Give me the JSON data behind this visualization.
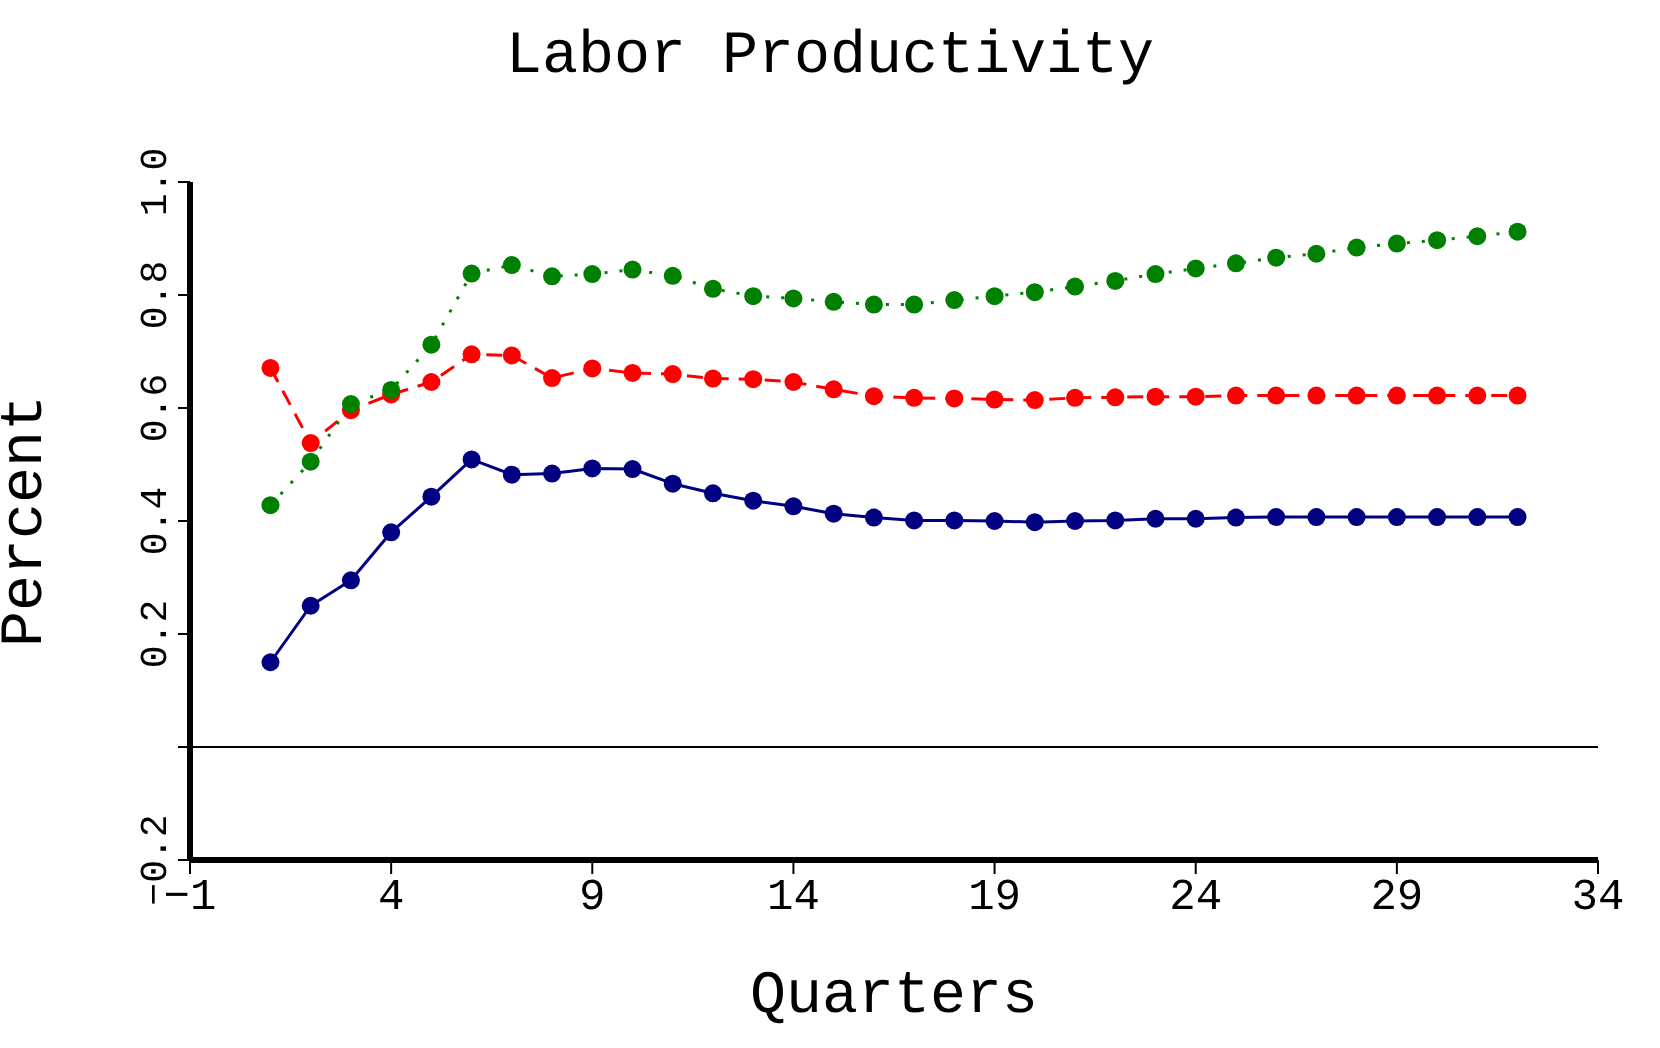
{
  "chart_data": {
    "type": "line",
    "title": "Labor Productivity",
    "xlabel": "Quarters",
    "ylabel": "Percent",
    "x": [
      1,
      2,
      3,
      4,
      5,
      6,
      7,
      8,
      9,
      10,
      11,
      12,
      13,
      14,
      15,
      16,
      17,
      18,
      19,
      20,
      21,
      22,
      23,
      24,
      25,
      26,
      27,
      28,
      29,
      30,
      31,
      32
    ],
    "series": [
      {
        "color": "#000080",
        "line_style": "solid",
        "values": [
          0.15,
          0.25,
          0.295,
          0.38,
          0.443,
          0.509,
          0.482,
          0.484,
          0.493,
          0.492,
          0.466,
          0.449,
          0.436,
          0.426,
          0.413,
          0.406,
          0.401,
          0.401,
          0.4,
          0.398,
          0.4,
          0.401,
          0.404,
          0.404,
          0.406,
          0.407,
          0.407,
          0.407,
          0.407,
          0.407,
          0.407,
          0.407
        ]
      },
      {
        "color": "#ff0000",
        "line_style": "dashed",
        "values": [
          0.671,
          0.538,
          0.596,
          0.624,
          0.646,
          0.695,
          0.693,
          0.653,
          0.67,
          0.662,
          0.66,
          0.652,
          0.651,
          0.646,
          0.633,
          0.621,
          0.618,
          0.617,
          0.615,
          0.614,
          0.618,
          0.619,
          0.62,
          0.62,
          0.622,
          0.622,
          0.622,
          0.622,
          0.622,
          0.622,
          0.622,
          0.622
        ]
      },
      {
        "color": "#008000",
        "line_style": "dotted",
        "values": [
          0.428,
          0.505,
          0.607,
          0.632,
          0.712,
          0.838,
          0.853,
          0.833,
          0.837,
          0.845,
          0.834,
          0.811,
          0.798,
          0.794,
          0.788,
          0.783,
          0.783,
          0.791,
          0.798,
          0.805,
          0.815,
          0.825,
          0.837,
          0.847,
          0.856,
          0.866,
          0.873,
          0.884,
          0.891,
          0.897,
          0.904,
          0.912
        ]
      }
    ],
    "xlim": [
      -1,
      34
    ],
    "xticks": [
      {
        "value": -1,
        "label": "−1"
      },
      4,
      9,
      14,
      19,
      24,
      29,
      34
    ],
    "ylim": [
      -0.2,
      1.0
    ],
    "yticks": [
      {
        "value": -0.2,
        "label": "−0.2"
      },
      {
        "value": 0,
        "label": null
      },
      {
        "value": 0.2,
        "label": "0.2"
      },
      {
        "value": 0.4,
        "label": "0.4"
      },
      {
        "value": 0.6,
        "label": "0.6"
      },
      {
        "value": 0.8,
        "label": "0.8"
      },
      {
        "value": 1.0,
        "label": "1.0"
      }
    ],
    "ref_lines": [
      {
        "axis": "y",
        "value": 0,
        "color": "#000000"
      }
    ],
    "marker": "circle",
    "grid": false
  }
}
